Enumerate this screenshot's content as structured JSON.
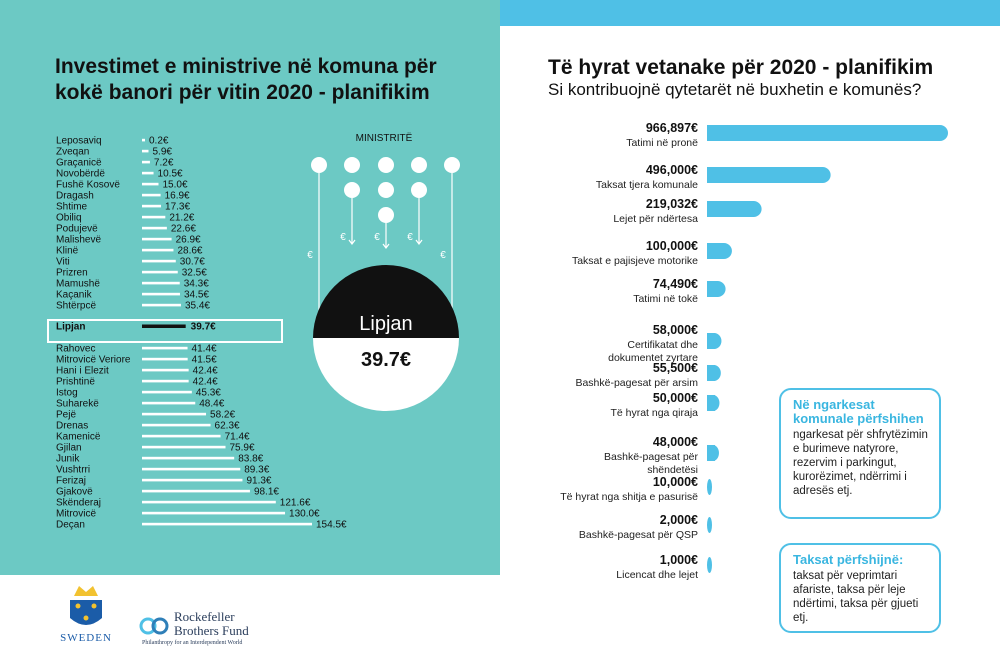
{
  "colors": {
    "teal_panel": "#6cc9c4",
    "blue_accent": "#4fc0e6",
    "bar_white": "#ffffff",
    "highlight": "#111111"
  },
  "left": {
    "title_line1": "Investimet e ministrive në komuna për",
    "title_line2": "kokë banori për vitin 2020 - planifikim",
    "ministries_label": "MINISTRITË",
    "euro_symbol": "€",
    "circle_name": "Lipjan",
    "circle_value": "39.7€"
  },
  "right": {
    "title": "Të hyrat vetanake për 2020 - planifikim",
    "subtitle": "Si kontribuojnë qytetarët në buxhetin e komunës?"
  },
  "notes": {
    "charges_title": "Në ngarkesat komunale përfshihen",
    "charges_body": "ngarkesat për shfrytëzimin e burimeve natyrore, rezervim i parkingut, kurorëzimet, ndërrimi i adresës etj.",
    "taxes_title": "Taksat përfshijnë:",
    "taxes_body": "taksat për veprimtari afariste, taksa për leje ndërtimi, taksa për gjueti etj."
  },
  "logos": {
    "sweden": "SWEDEN",
    "rbf_line1": "Rockefeller",
    "rbf_line2": "Brothers Fund",
    "rbf_tagline": "Philanthropy for an Interdependent World"
  },
  "chart_data": [
    {
      "type": "bar",
      "orientation": "horizontal",
      "title": "Investimet e ministrive në komuna për kokë banori për vitin 2020 - planifikim",
      "unit": "€",
      "highlight": "Lipjan",
      "rows": [
        {
          "name": "Leposaviq",
          "value": 0.2,
          "label": "0.2€"
        },
        {
          "name": "Zveqan",
          "value": 5.9,
          "label": "5.9€"
        },
        {
          "name": "Graçanicë",
          "value": 7.2,
          "label": "7.2€"
        },
        {
          "name": "Novobërdë",
          "value": 10.5,
          "label": "10.5€"
        },
        {
          "name": "Fushë Kosovë",
          "value": 15.0,
          "label": "15.0€"
        },
        {
          "name": "Dragash",
          "value": 16.9,
          "label": "16.9€"
        },
        {
          "name": "Shtime",
          "value": 17.3,
          "label": "17.3€"
        },
        {
          "name": "Obiliq",
          "value": 21.2,
          "label": "21.2€"
        },
        {
          "name": "Podujevë",
          "value": 22.6,
          "label": "22.6€"
        },
        {
          "name": "Malishevë",
          "value": 26.9,
          "label": "26.9€"
        },
        {
          "name": "Klinë",
          "value": 28.6,
          "label": "28.6€"
        },
        {
          "name": "Viti",
          "value": 30.7,
          "label": "30.7€"
        },
        {
          "name": "Prizren",
          "value": 32.5,
          "label": "32.5€"
        },
        {
          "name": "Mamushë",
          "value": 34.3,
          "label": "34.3€"
        },
        {
          "name": "Kaçanik",
          "value": 34.5,
          "label": "34.5€"
        },
        {
          "name": "Shtërpcë",
          "value": 35.4,
          "label": "35.4€"
        },
        {
          "name": "Lipjan",
          "value": 39.7,
          "label": "39.7€"
        },
        {
          "name": "Rahovec",
          "value": 41.4,
          "label": "41.4€"
        },
        {
          "name": "Mitrovicë Veriore",
          "value": 41.5,
          "label": "41.5€"
        },
        {
          "name": "Hani i Elezit",
          "value": 42.4,
          "label": "42.4€"
        },
        {
          "name": "Prishtinë",
          "value": 42.4,
          "label": "42.4€"
        },
        {
          "name": "Istog",
          "value": 45.3,
          "label": "45.3€"
        },
        {
          "name": "Suharekë",
          "value": 48.4,
          "label": "48.4€"
        },
        {
          "name": "Pejë",
          "value": 58.2,
          "label": "58.2€"
        },
        {
          "name": "Drenas",
          "value": 62.3,
          "label": "62.3€"
        },
        {
          "name": "Kamenicë",
          "value": 71.4,
          "label": "71.4€"
        },
        {
          "name": "Gjilan",
          "value": 75.9,
          "label": "75.9€"
        },
        {
          "name": "Junik",
          "value": 83.8,
          "label": "83.8€"
        },
        {
          "name": "Vushtrri",
          "value": 89.3,
          "label": "89.3€"
        },
        {
          "name": "Ferizaj",
          "value": 91.3,
          "label": "91.3€"
        },
        {
          "name": "Gjakovë",
          "value": 98.1,
          "label": "98.1€"
        },
        {
          "name": "Skënderaj",
          "value": 121.6,
          "label": "121.6€"
        },
        {
          "name": "Mitrovicë",
          "value": 130.0,
          "label": "130.0€"
        },
        {
          "name": "Deçan",
          "value": 154.5,
          "label": "154.5€"
        }
      ]
    },
    {
      "type": "bar",
      "orientation": "horizontal",
      "title": "Të hyrat vetanake për 2020 - planifikim",
      "subtitle": "Si kontribuojnë qytetarët në buxhetin e komunës?",
      "unit": "€",
      "rows": [
        {
          "value": 966897,
          "label": "966,897€",
          "name": "Tatimi në pronë"
        },
        {
          "value": 496000,
          "label": "496,000€",
          "name": "Taksat tjera komunale"
        },
        {
          "value": 219032,
          "label": "219,032€",
          "name": "Lejet për ndërtesa"
        },
        {
          "value": 100000,
          "label": "100,000€",
          "name": "Taksat e pajisjeve motorike"
        },
        {
          "value": 74490,
          "label": "74,490€",
          "name": "Tatimi në tokë"
        },
        {
          "value": 58000,
          "label": "58,000€",
          "name": "Certifikatat dhe dokumentet zyrtare"
        },
        {
          "value": 55500,
          "label": "55,500€",
          "name": "Bashkë-pagesat për arsim"
        },
        {
          "value": 50000,
          "label": "50,000€",
          "name": "Të hyrat nga qiraja"
        },
        {
          "value": 48000,
          "label": "48,000€",
          "name": "Bashkë-pagesat për shëndetësi"
        },
        {
          "value": 10000,
          "label": "10,000€",
          "name": "Të hyrat nga shitja e pasurisë"
        },
        {
          "value": 2000,
          "label": "2,000€",
          "name": "Bashkë-pagesat për QSP"
        },
        {
          "value": 1000,
          "label": "1,000€",
          "name": "Licencat dhe lejet"
        }
      ]
    }
  ]
}
